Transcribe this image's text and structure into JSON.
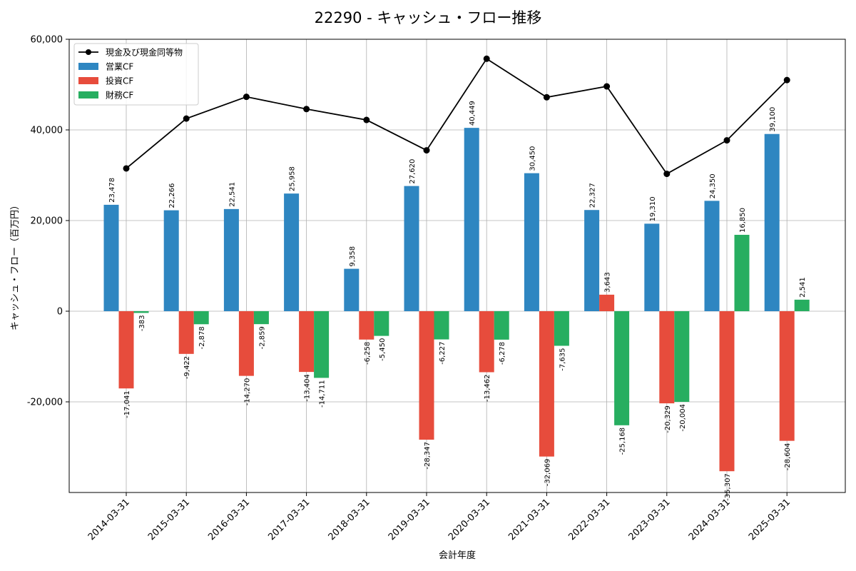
{
  "chart_data": {
    "type": "bar",
    "title": "22290 - キャッシュ・フロー推移",
    "xlabel": "会計年度",
    "ylabel": "キャッシュ・フロー（百万円）",
    "ylim": [
      -40000,
      60000
    ],
    "yticks": [
      -20000,
      0,
      20000,
      40000,
      60000
    ],
    "ytick_labels": [
      "-20,000",
      "0",
      "20,000",
      "40,000",
      "60,000"
    ],
    "grid": true,
    "legend_position": "top-left",
    "categories": [
      "2014-03-31",
      "2015-03-31",
      "2016-03-31",
      "2017-03-31",
      "2018-03-31",
      "2019-03-31",
      "2020-03-31",
      "2021-03-31",
      "2022-03-31",
      "2023-03-31",
      "2024-03-31",
      "2025-03-31"
    ],
    "series": [
      {
        "name": "営業CF",
        "type": "bar",
        "color": "#2e86c1",
        "values": [
          23478,
          22266,
          22541,
          25958,
          9358,
          27620,
          40449,
          30450,
          22327,
          19310,
          24350,
          39100
        ],
        "labels": [
          "23,478",
          "22,266",
          "22,541",
          "25,958",
          "9,358",
          "27,620",
          "40,449",
          "30,450",
          "22,327",
          "19,310",
          "24,350",
          "39,100"
        ]
      },
      {
        "name": "投資CF",
        "type": "bar",
        "color": "#e74c3c",
        "values": [
          -17041,
          -9422,
          -14270,
          -13404,
          -6258,
          -28347,
          -13462,
          -32069,
          3643,
          -20329,
          -35307,
          -28604
        ],
        "labels": [
          "-17,041",
          "-9,422",
          "-14,270",
          "-13,404",
          "-6,258",
          "-28,347",
          "-13,462",
          "-32,069",
          "3,643",
          "-20,329",
          "-35,307",
          "-28,604"
        ]
      },
      {
        "name": "財務CF",
        "type": "bar",
        "color": "#27ae60",
        "values": [
          -383,
          -2878,
          -2859,
          -14711,
          -5450,
          -6227,
          -6278,
          -7635,
          -25168,
          -20004,
          16850,
          2541
        ],
        "labels": [
          "-383",
          "-2,878",
          "-2,859",
          "-14,711",
          "-5,450",
          "-6,227",
          "-6,278",
          "-7,635",
          "-25,168",
          "-20,004",
          "16,850",
          "2,541"
        ]
      },
      {
        "name": "現金及び現金同等物",
        "type": "line",
        "color": "#000000",
        "values": [
          31500,
          42500,
          47300,
          44600,
          42200,
          35500,
          55700,
          47200,
          49600,
          30300,
          37700,
          51000
        ]
      }
    ]
  }
}
